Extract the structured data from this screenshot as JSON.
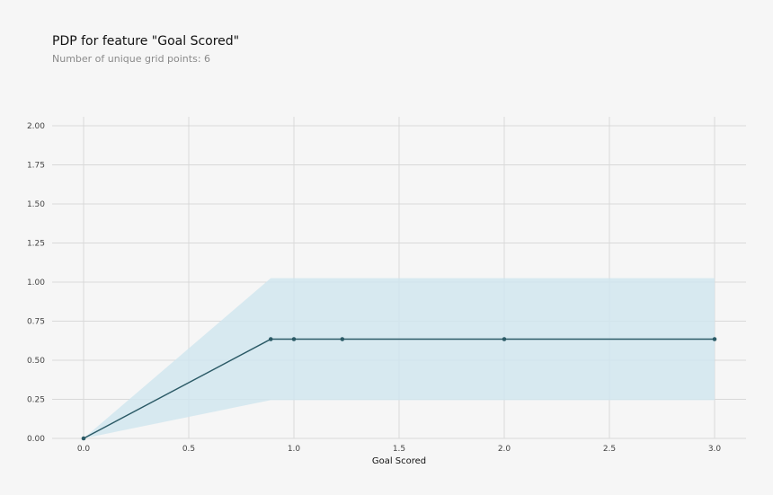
{
  "chart_data": {
    "type": "line",
    "title": "PDP for feature \"Goal Scored\"",
    "subtitle": "Number of unique grid points: 6",
    "xlabel": "Goal Scored",
    "ylabel": "",
    "xlim": [
      -0.1,
      3.15
    ],
    "ylim": [
      0,
      2.08
    ],
    "xticks": [
      0.0,
      0.5,
      1.0,
      1.5,
      2.0,
      2.5,
      3.0
    ],
    "xtick_labels": [
      "0.0",
      "0.5",
      "1.0",
      "1.5",
      "2.0",
      "2.5",
      "3.0"
    ],
    "yticks": [
      0.0,
      0.25,
      0.5,
      0.75,
      1.0,
      1.25,
      1.5,
      1.75,
      2.0
    ],
    "ytick_labels": [
      "0.00",
      "0.25",
      "0.50",
      "0.75",
      "1.00",
      "1.25",
      "1.50",
      "1.75",
      "2.00"
    ],
    "grid": true,
    "series": [
      {
        "x": [
          0.0,
          0.89,
          1.0,
          1.23,
          2.0,
          3.0
        ],
        "values": [
          0.0,
          0.635,
          0.635,
          0.635,
          0.635,
          0.635
        ],
        "lower": [
          0.0,
          0.245,
          0.245,
          0.245,
          0.245,
          0.245
        ],
        "upper": [
          0.0,
          1.025,
          1.025,
          1.025,
          1.025,
          1.025
        ],
        "color": "#2b5a66",
        "band_color": "#cfe6ef"
      }
    ]
  }
}
